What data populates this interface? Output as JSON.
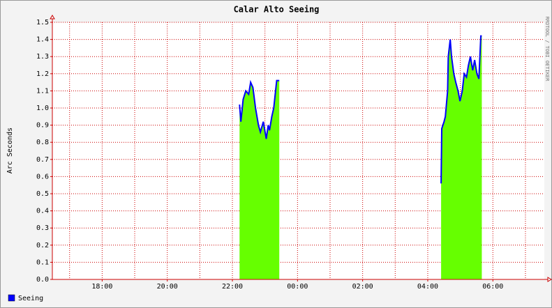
{
  "chart_data": {
    "type": "area-line",
    "title": "Calar Alto Seeing",
    "ylabel": "Arc Seconds",
    "watermark": "RRDTOOL / TOBI OETIKER",
    "x": [
      22.22,
      22.26,
      22.33,
      22.41,
      22.5,
      22.56,
      22.63,
      22.71,
      22.8,
      22.86,
      22.95,
      23.04,
      23.1,
      23.14,
      23.21,
      23.27,
      23.36,
      23.44,
      26.0,
      28.41,
      28.43,
      28.5,
      28.54,
      28.61,
      28.63,
      28.69,
      28.73,
      28.8,
      28.86,
      28.93,
      28.99,
      29.06,
      29.12,
      29.19,
      29.25,
      29.31,
      29.38,
      29.44,
      29.51,
      29.57,
      29.63,
      29.66
    ],
    "series": [
      {
        "name": "Seeing",
        "color": "#0000ff",
        "area_color": "#66ff00",
        "values": [
          1.02,
          0.92,
          1.05,
          1.1,
          1.08,
          1.15,
          1.12,
          1.0,
          0.9,
          0.86,
          0.92,
          0.82,
          0.9,
          0.87,
          0.95,
          1.0,
          1.16,
          1.16,
          null,
          0.56,
          0.88,
          0.92,
          0.95,
          1.1,
          1.3,
          1.4,
          1.3,
          1.2,
          1.15,
          1.1,
          1.04,
          1.1,
          1.2,
          1.18,
          1.25,
          1.3,
          1.22,
          1.28,
          1.2,
          1.17,
          1.42,
          1.42
        ]
      }
    ],
    "xlim": [
      16.47,
      31.58
    ],
    "xticks": [
      {
        "value": 18,
        "label": "18:00"
      },
      {
        "value": 20,
        "label": "20:00"
      },
      {
        "value": 22,
        "label": "22:00"
      },
      {
        "value": 24,
        "label": "00:00"
      },
      {
        "value": 26,
        "label": "02:00"
      },
      {
        "value": 28,
        "label": "04:00"
      },
      {
        "value": 30,
        "label": "06:00"
      }
    ],
    "x_minor_ticks": [
      17,
      19,
      21,
      23,
      25,
      27,
      29,
      31
    ],
    "ylim": [
      0,
      1.5
    ],
    "yticks": [
      {
        "value": 0,
        "label": "0.0"
      },
      0.1,
      0.2,
      0.3,
      0.4,
      0.5,
      0.6,
      0.7,
      0.8,
      0.9,
      {
        "value": 1,
        "label": "1.0"
      },
      1.1,
      1.2,
      1.3,
      1.4,
      1.5
    ],
    "grid": true
  }
}
